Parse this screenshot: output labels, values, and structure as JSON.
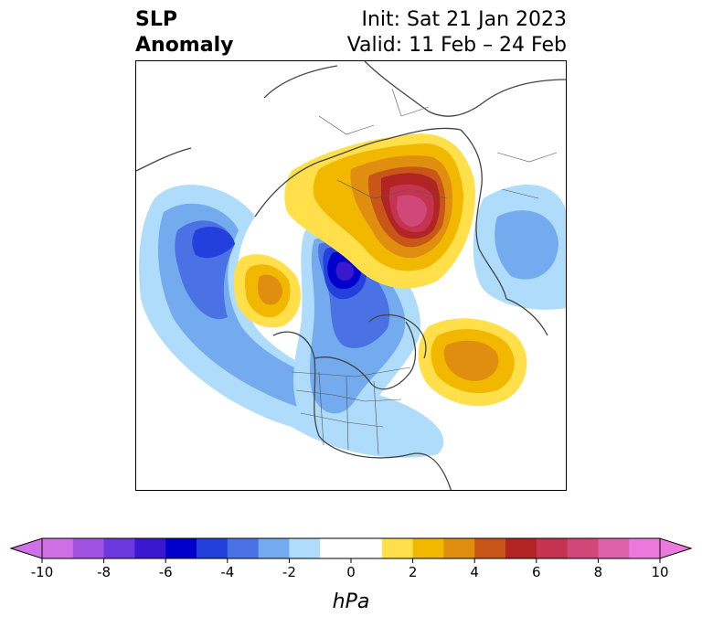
{
  "title": {
    "left_line1": "SLP",
    "left_line2": "Anomaly",
    "right_line1": "Init: Sat 21 Jan 2023",
    "right_line2": "Valid: 11 Feb – 24 Feb"
  },
  "colorbar": {
    "unit": "hPa",
    "ticks": [
      "-10",
      "-8",
      "-6",
      "-4",
      "-2",
      "0",
      "2",
      "4",
      "6",
      "8",
      "10"
    ],
    "bins": [
      {
        "from": -10,
        "to": -9,
        "color": "#d070e6"
      },
      {
        "from": -9,
        "to": -8,
        "color": "#a052e0"
      },
      {
        "from": -8,
        "to": -7,
        "color": "#6a38dc"
      },
      {
        "from": -7,
        "to": -6,
        "color": "#3a18d0"
      },
      {
        "from": -6,
        "to": -5,
        "color": "#0000cc"
      },
      {
        "from": -5,
        "to": -4,
        "color": "#2340dc"
      },
      {
        "from": -4,
        "to": -3,
        "color": "#4a72e4"
      },
      {
        "from": -3,
        "to": -2,
        "color": "#74aaee"
      },
      {
        "from": -2,
        "to": -1,
        "color": "#aedcfa"
      },
      {
        "from": -1,
        "to": 1,
        "color": "#ffffff"
      },
      {
        "from": 1,
        "to": 2,
        "color": "#ffe04a"
      },
      {
        "from": 2,
        "to": 3,
        "color": "#f2b800"
      },
      {
        "from": 3,
        "to": 4,
        "color": "#e08e10"
      },
      {
        "from": 4,
        "to": 5,
        "color": "#c85618"
      },
      {
        "from": 5,
        "to": 6,
        "color": "#b02424"
      },
      {
        "from": 6,
        "to": 7,
        "color": "#c43450"
      },
      {
        "from": 7,
        "to": 8,
        "color": "#d04878"
      },
      {
        "from": 8,
        "to": 9,
        "color": "#de62aa"
      },
      {
        "from": 9,
        "to": 10,
        "color": "#ec7adc"
      }
    ],
    "extend_low_color": "#d070e6",
    "extend_high_color": "#ec7adc"
  }
}
